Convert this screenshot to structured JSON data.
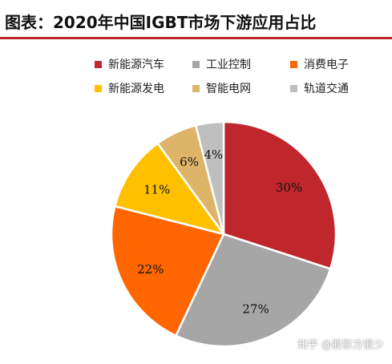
{
  "title": "图表：2020年中国IGBT市场下游应用占比",
  "watermark": "知乎 @股影方很少",
  "chart_data": {
    "type": "pie",
    "categories": [
      "新能源汽车",
      "工业控制",
      "消费电子",
      "新能源发电",
      "智能电网",
      "轨道交通"
    ],
    "values": [
      30,
      27,
      22,
      11,
      6,
      4
    ],
    "data_labels": [
      "30%",
      "27%",
      "22%",
      "11%",
      "6%",
      "4%"
    ],
    "colors": [
      "#c0272d",
      "#a6a6a6",
      "#ff6600",
      "#ffc000",
      "#deb468",
      "#bfbfbf"
    ],
    "legend_position": "top",
    "unit": "%"
  }
}
